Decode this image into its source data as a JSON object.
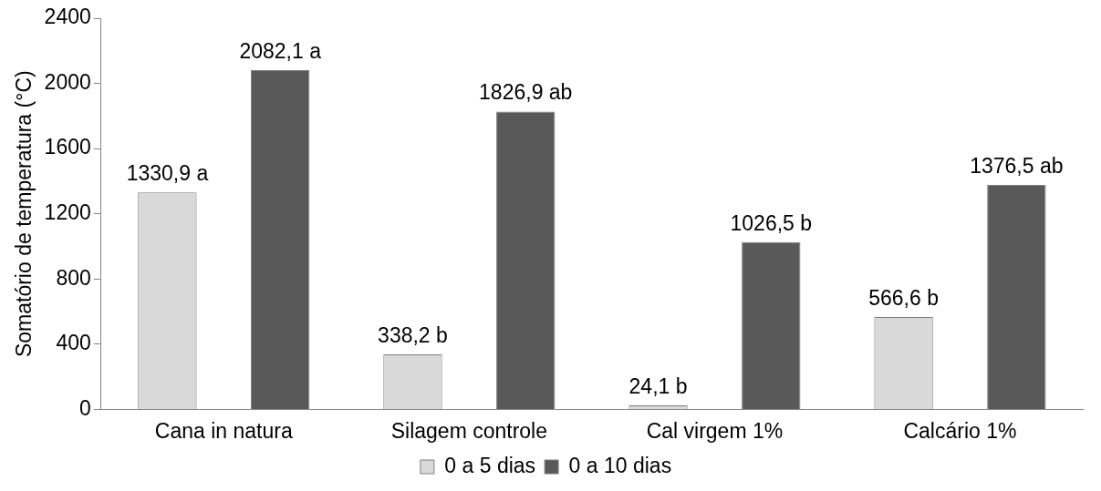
{
  "chart_data": {
    "type": "bar",
    "ylabel": "Somatório de temperatura (°C)",
    "categories": [
      "Cana in natura",
      "Silagem controle",
      "Cal virgem 1%",
      "Calcário 1%"
    ],
    "series": [
      {
        "name": "0 a 5 dias",
        "color": "#d9d9d9",
        "values": [
          1330.9,
          338.2,
          24.1,
          566.6
        ],
        "value_labels": [
          "1330,9 a",
          "338,2 b",
          "24,1 b",
          "566,6 b"
        ]
      },
      {
        "name": "0 a 10 dias",
        "color": "#595959",
        "values": [
          2082.1,
          1826.9,
          1026.5,
          1376.5
        ],
        "value_labels": [
          "2082,1 a",
          "1826,9 ab",
          "1026,5 b",
          "1376,5 ab"
        ]
      }
    ],
    "ylim": [
      0,
      2400
    ],
    "yticks": [
      0,
      400,
      800,
      1200,
      1600,
      2000,
      2400
    ],
    "grid": false,
    "legend": "bottom"
  }
}
